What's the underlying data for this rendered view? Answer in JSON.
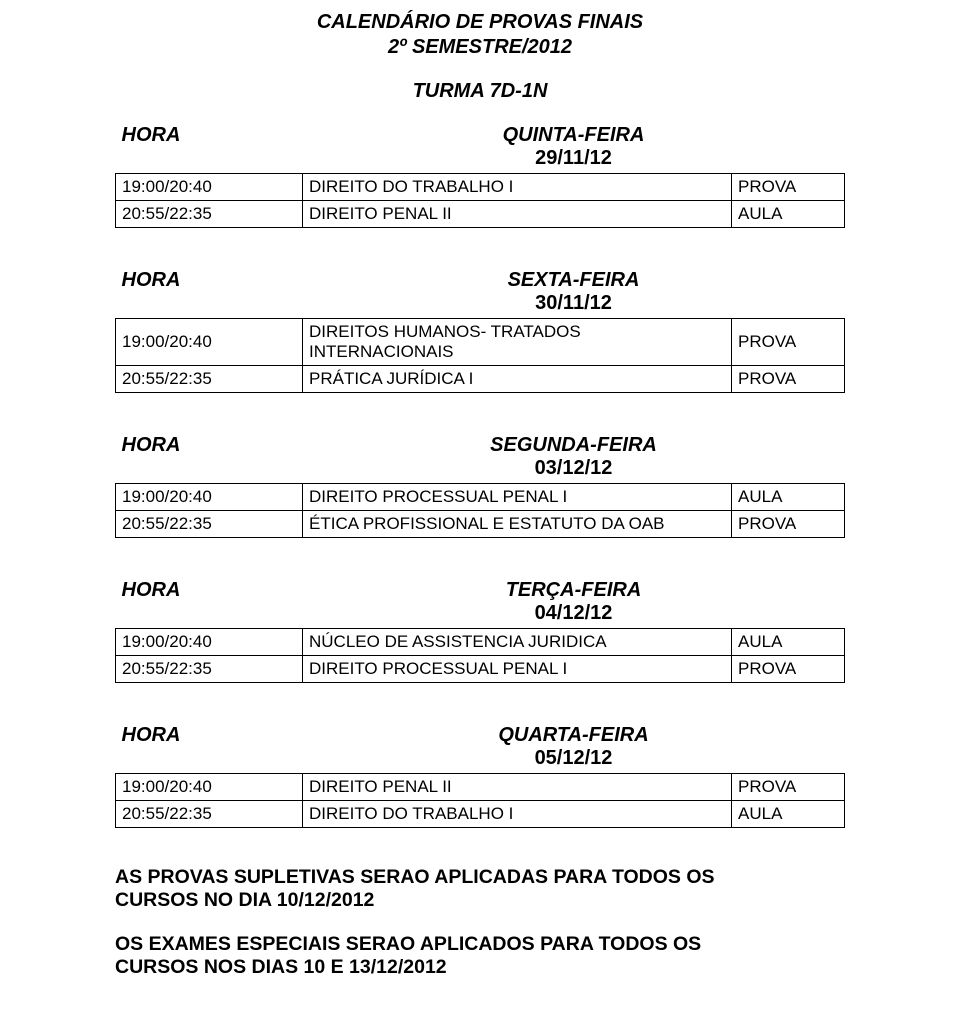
{
  "colors": {
    "text": "#000000",
    "background": "#ffffff",
    "border": "#000000"
  },
  "typography": {
    "title_fontsize": 20,
    "body_fontsize": 17,
    "footer_fontsize": 19.5,
    "font_family": "Arial"
  },
  "title": {
    "line1": "CALENDÁRIO DE PROVAS FINAIS",
    "line2": "2º SEMESTRE/2012"
  },
  "turma": "TURMA 7D-1N",
  "labels": {
    "hora": "HORA"
  },
  "tables": [
    {
      "day_label": "QUINTA-FEIRA",
      "date": "29/11/12",
      "rows": [
        {
          "time": "19:00/20:40",
          "subject": "DIREITO DO TRABALHO I",
          "status": "PROVA"
        },
        {
          "time": "20:55/22:35",
          "subject": "DIREITO PENAL II",
          "status": "AULA"
        }
      ]
    },
    {
      "day_label": "SEXTA-FEIRA",
      "date": "30/11/12",
      "rows": [
        {
          "time": "19:00/20:40",
          "subject": "DIREITOS HUMANOS- TRATADOS INTERNACIONAIS",
          "status": "PROVA"
        },
        {
          "time": "20:55/22:35",
          "subject": "PRÁTICA JURÍDICA I",
          "status": "PROVA"
        }
      ]
    },
    {
      "day_label": "SEGUNDA-FEIRA",
      "date": "03/12/12",
      "rows": [
        {
          "time": "19:00/20:40",
          "subject": "DIREITO PROCESSUAL PENAL I",
          "status": "AULA"
        },
        {
          "time": "20:55/22:35",
          "subject": "ÉTICA PROFISSIONAL E ESTATUTO DA OAB",
          "status": "PROVA"
        }
      ]
    },
    {
      "day_label": "TERÇA-FEIRA",
      "date": "04/12/12",
      "rows": [
        {
          "time": "19:00/20:40",
          "subject": "NÚCLEO DE ASSISTENCIA JURIDICA",
          "status": "AULA"
        },
        {
          "time": "20:55/22:35",
          "subject": "DIREITO PROCESSUAL PENAL I",
          "status": "PROVA"
        }
      ]
    },
    {
      "day_label": "QUARTA-FEIRA",
      "date": "05/12/12",
      "rows": [
        {
          "time": "19:00/20:40",
          "subject": "DIREITO PENAL II",
          "status": "PROVA"
        },
        {
          "time": "20:55/22:35",
          "subject": "DIREITO DO TRABALHO I",
          "status": "AULA"
        }
      ]
    }
  ],
  "footer": {
    "p1_line1": "AS PROVAS SUPLETIVAS SERAO APLICADAS PARA TODOS OS",
    "p1_line2": "CURSOS NO DIA 10/12/2012",
    "p2_line1": "OS EXAMES ESPECIAIS SERAO APLICADOS PARA TODOS OS",
    "p2_line2": "CURSOS NOS DIAS 10 E 13/12/2012"
  }
}
